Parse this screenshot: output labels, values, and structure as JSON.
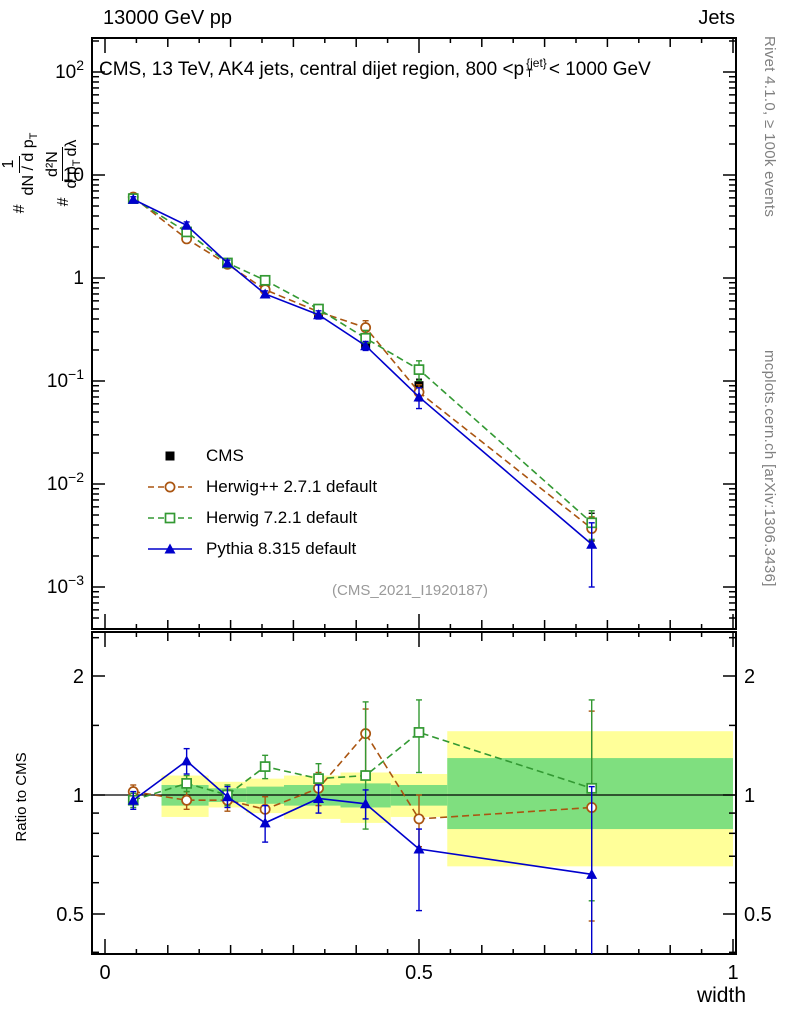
{
  "header": {
    "left": "13000 GeV pp",
    "right": "Jets"
  },
  "title": {
    "pre": "CMS, 13 TeV, AK4 jets, central dijet region, 800 <p",
    "sup": "{jet}",
    "sub": "T",
    "post": "< 1000 GeV"
  },
  "ylabel_main": {
    "l1_hash": "#",
    "l1_num": "1",
    "l1_den": "dN / d p",
    "l1_den_sub": "T",
    "l2_hash": "#",
    "l2_num": "d²N",
    "l2_den_a": "d p",
    "l2_den_sub": "T",
    "l2_den_b": "dλ"
  },
  "annotations": {
    "watermark": "(CMS_2021_I1920187)",
    "rivet": "Rivet 4.1.0, ≥ 100k events",
    "mcplots": "mcplots.cern.ch [arXiv:1306.3436]"
  },
  "chart_data": {
    "type": "line",
    "title": "CMS, 13 TeV, AK4 jets, central dijet region, 800 < pT(jet) < 1000 GeV",
    "xlabel": "width",
    "xlim": [
      -0.02,
      1.005
    ],
    "x": [
      0.045,
      0.13,
      0.195,
      0.255,
      0.34,
      0.415,
      0.5,
      0.775
    ],
    "x_ticks": [
      {
        "v": 0,
        "label": "0"
      },
      {
        "v": 0.5,
        "label": "0.5"
      },
      {
        "v": 1,
        "label": "1"
      }
    ],
    "main": {
      "yscale": "log10",
      "ylim": [
        0.0004,
        210
      ],
      "grid": false,
      "y_ticks": [
        {
          "v": 100,
          "base": "10",
          "exp": "2"
        },
        {
          "v": 10,
          "label": "10"
        },
        {
          "v": 1,
          "label": "1"
        },
        {
          "v": 0.1,
          "base": "10",
          "exp": "−1"
        },
        {
          "v": 0.01,
          "base": "10",
          "exp": "−2"
        },
        {
          "v": 0.001,
          "base": "10",
          "exp": "−3"
        }
      ],
      "series": [
        {
          "name": "CMS",
          "color": "#000000",
          "marker": "square-filled",
          "line": "none",
          "values": [
            6.0,
            2.6,
            1.4,
            0.8,
            0.45,
            0.23,
            0.09,
            0.004
          ],
          "yerr": [
            0.5,
            0.2,
            0.1,
            0.06,
            0.035,
            0.022,
            0.014,
            0.0012
          ]
        },
        {
          "name": "Herwig++ 2.7.1 default",
          "color": "#aa5511",
          "marker": "circle-open",
          "line": "dashed",
          "values": [
            6.1,
            2.4,
            1.36,
            0.77,
            0.47,
            0.33,
            0.078,
            0.0037
          ],
          "yerr": [
            0.4,
            0.15,
            0.08,
            0.06,
            0.05,
            0.055,
            0.014,
            0.0011
          ]
        },
        {
          "name": "Herwig 7.2.1 default",
          "color": "#339933",
          "marker": "square-open",
          "line": "dashed",
          "values": [
            5.9,
            2.8,
            1.4,
            0.95,
            0.5,
            0.26,
            0.129,
            0.0042
          ],
          "yerr": [
            0.4,
            0.18,
            0.09,
            0.07,
            0.05,
            0.05,
            0.028,
            0.0013
          ]
        },
        {
          "name": "Pythia 8.315 default",
          "color": "#0000cc",
          "marker": "triangle-filled",
          "line": "solid",
          "values": [
            5.8,
            3.25,
            1.4,
            0.7,
            0.44,
            0.22,
            0.07,
            0.0026
          ],
          "yerr": [
            0.35,
            0.25,
            0.09,
            0.05,
            0.04,
            0.022,
            0.016,
            0.0016
          ]
        }
      ]
    },
    "ratio": {
      "yscale": "log2",
      "ylabel": "Ratio to CMS",
      "ylim": [
        0.4,
        2.6
      ],
      "reference": 1,
      "y_ticks": [
        {
          "v": 0.5,
          "label": "0.5"
        },
        {
          "v": 1,
          "label": "1"
        },
        {
          "v": 2,
          "label": "2"
        }
      ],
      "y_minor": [
        0.4,
        0.6,
        0.7,
        0.8,
        0.9,
        1.5,
        2.5
      ],
      "bands": {
        "yellow": {
          "color": "#ffff99",
          "segments": [
            [
              0.09,
              0.165,
              0.88,
              1.12
            ],
            [
              0.165,
              0.225,
              0.93,
              1.08
            ],
            [
              0.225,
              0.285,
              0.9,
              1.1
            ],
            [
              0.285,
              0.375,
              0.87,
              1.12
            ],
            [
              0.375,
              0.455,
              0.85,
              1.14
            ],
            [
              0.455,
              0.545,
              0.88,
              1.13
            ],
            [
              0.545,
              1.0,
              0.66,
              1.45
            ]
          ]
        },
        "green": {
          "color": "#7fdf7f",
          "segments": [
            [
              0.09,
              0.165,
              0.94,
              1.06
            ],
            [
              0.165,
              0.225,
              0.96,
              1.04
            ],
            [
              0.225,
              0.285,
              0.95,
              1.05
            ],
            [
              0.285,
              0.375,
              0.94,
              1.06
            ],
            [
              0.375,
              0.455,
              0.93,
              1.07
            ],
            [
              0.455,
              0.545,
              0.94,
              1.06
            ],
            [
              0.545,
              1.0,
              0.82,
              1.24
            ]
          ]
        }
      },
      "series": [
        {
          "name": "Herwig++ 2.7.1 default",
          "color": "#aa5511",
          "marker": "circle-open",
          "line": "dashed",
          "values": [
            1.02,
            0.97,
            0.97,
            0.92,
            1.04,
            1.43,
            0.87,
            0.93
          ],
          "err_lo": [
            0.04,
            0.05,
            0.06,
            0.07,
            0.1,
            0.28,
            0.13,
            0.45
          ],
          "err_hi": [
            0.04,
            0.05,
            0.06,
            0.07,
            0.1,
            0.22,
            0.13,
            0.7
          ]
        },
        {
          "name": "Herwig 7.2.1 default",
          "color": "#339933",
          "marker": "square-open",
          "line": "dashed",
          "values": [
            0.97,
            1.07,
            1.0,
            1.18,
            1.1,
            1.12,
            1.44,
            1.04
          ],
          "err_lo": [
            0.04,
            0.05,
            0.06,
            0.08,
            0.1,
            0.3,
            0.3,
            0.5
          ],
          "err_hi": [
            0.04,
            0.05,
            0.06,
            0.08,
            0.1,
            0.6,
            0.3,
            0.7
          ]
        },
        {
          "name": "Pythia 8.315 default",
          "color": "#0000cc",
          "marker": "triangle-filled",
          "line": "solid",
          "values": [
            0.97,
            1.22,
            0.99,
            0.85,
            0.98,
            0.95,
            0.73,
            0.63
          ],
          "err_lo": [
            0.05,
            0.09,
            0.06,
            0.09,
            0.08,
            0.08,
            0.22,
            0.3
          ],
          "err_hi": [
            0.05,
            0.09,
            0.06,
            0.09,
            0.08,
            0.08,
            0.09,
            0.42
          ]
        }
      ]
    }
  }
}
